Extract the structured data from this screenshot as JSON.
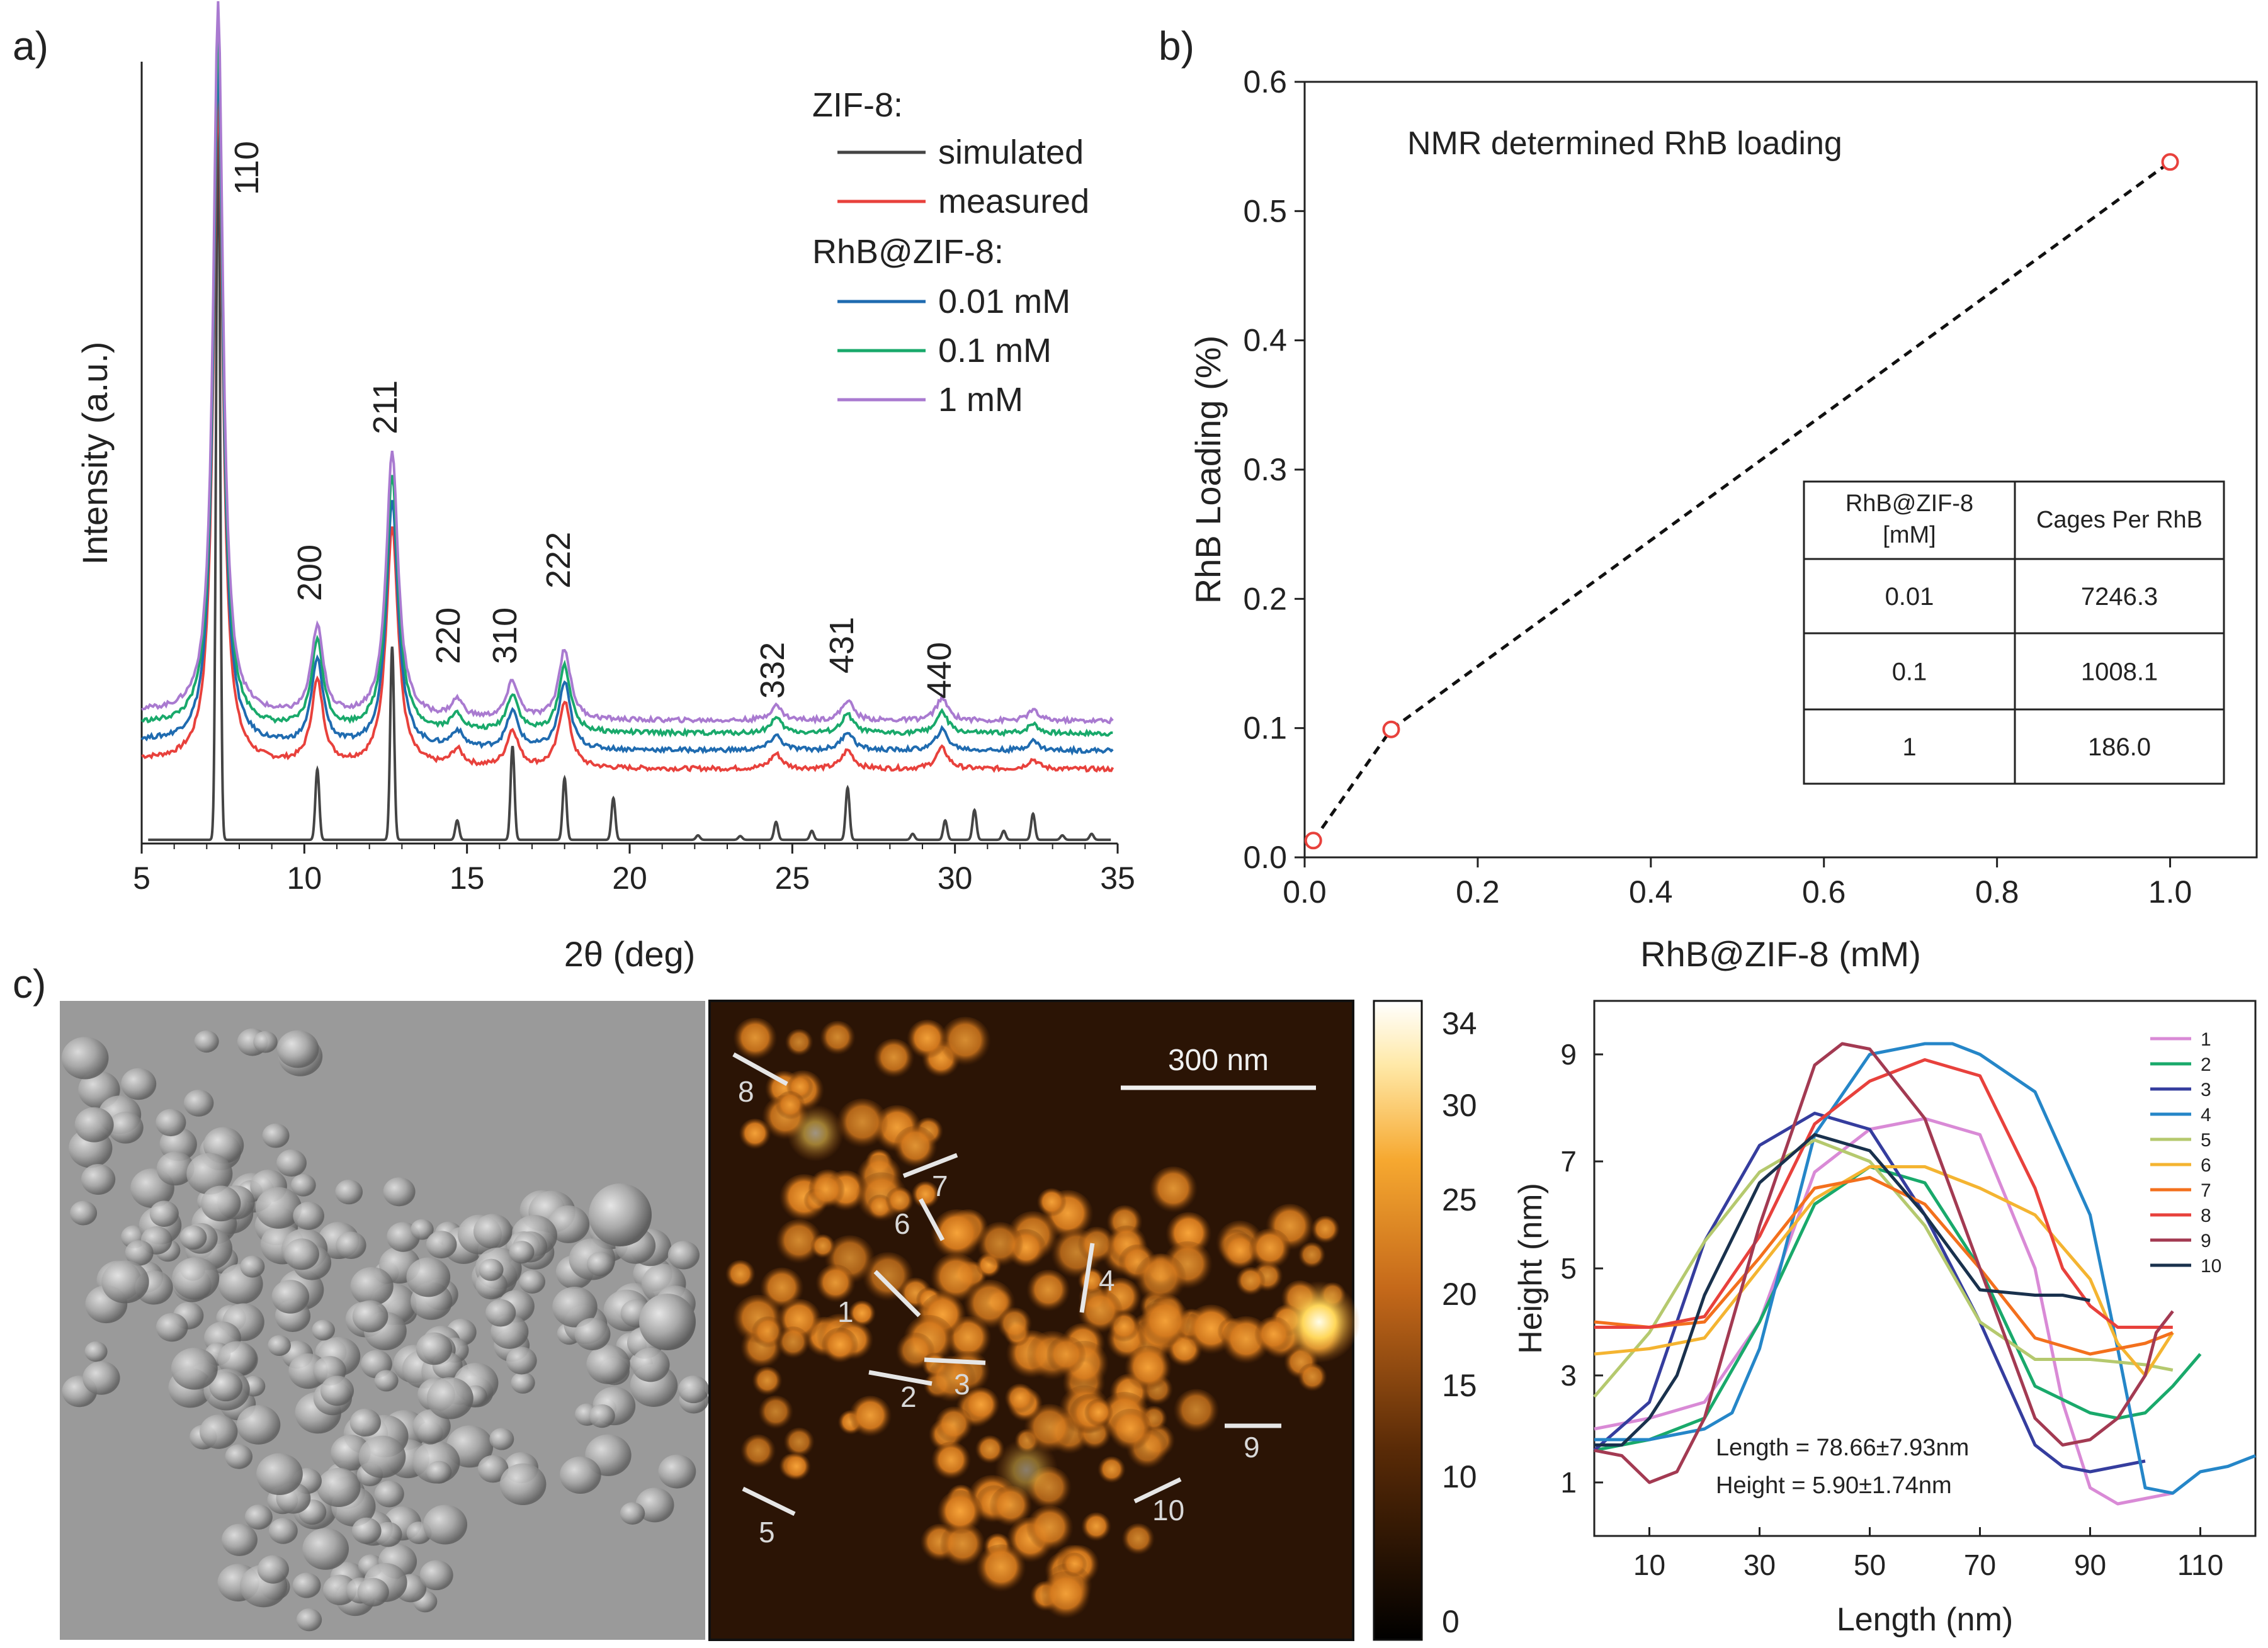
{
  "panels": {
    "a": "a)",
    "b": "b)",
    "c": "c)"
  },
  "colors": {
    "simulated": "#444444",
    "measured": "#e8413c",
    "c001": "#1f6bb0",
    "c01": "#19a96b",
    "c1": "#a97ad0"
  },
  "chart_data": [
    {
      "id": "xrd",
      "type": "line",
      "title": "",
      "xlabel": "2θ (deg)",
      "ylabel": "Intensity (a.u.)",
      "xlim": [
        5,
        35
      ],
      "xticks": [
        "5",
        "10",
        "15",
        "20",
        "25",
        "30",
        "35"
      ],
      "legend": {
        "group1": "ZIF-8:",
        "group2": "RhB@ZIF-8:",
        "entries": [
          {
            "name": "simulated",
            "color": "#444444"
          },
          {
            "name": "measured",
            "color": "#e8413c"
          },
          {
            "name": "0.01 mM",
            "color": "#1f6bb0"
          },
          {
            "name": "0.1 mM",
            "color": "#19a96b"
          },
          {
            "name": "1 mM",
            "color": "#a97ad0"
          }
        ]
      },
      "peaks": [
        {
          "hkl": "110",
          "x": 7.35
        },
        {
          "hkl": "200",
          "x": 10.4
        },
        {
          "hkl": "211",
          "x": 12.7
        },
        {
          "hkl": "220",
          "x": 14.7
        },
        {
          "hkl": "310",
          "x": 16.4
        },
        {
          "hkl": "222",
          "x": 18.0
        },
        {
          "hkl": "332",
          "x": 24.5
        },
        {
          "hkl": "431",
          "x": 26.7
        },
        {
          "hkl": "440",
          "x": 29.6
        }
      ],
      "simulated_sticks": [
        {
          "x": 7.35,
          "h": 1.0
        },
        {
          "x": 10.4,
          "h": 0.095
        },
        {
          "x": 12.7,
          "h": 0.26
        },
        {
          "x": 14.7,
          "h": 0.026
        },
        {
          "x": 16.4,
          "h": 0.126
        },
        {
          "x": 18.0,
          "h": 0.083
        },
        {
          "x": 19.5,
          "h": 0.056
        },
        {
          "x": 22.1,
          "h": 0.006
        },
        {
          "x": 23.4,
          "h": 0.005
        },
        {
          "x": 24.5,
          "h": 0.024
        },
        {
          "x": 25.6,
          "h": 0.012
        },
        {
          "x": 26.7,
          "h": 0.07
        },
        {
          "x": 28.7,
          "h": 0.008
        },
        {
          "x": 29.7,
          "h": 0.026
        },
        {
          "x": 30.6,
          "h": 0.04
        },
        {
          "x": 31.5,
          "h": 0.012
        },
        {
          "x": 32.4,
          "h": 0.035
        },
        {
          "x": 33.3,
          "h": 0.006
        },
        {
          "x": 34.2,
          "h": 0.008
        }
      ],
      "series": [
        {
          "name": "measured",
          "base": 0.1,
          "tilt": 0.0,
          "amps": [
            0.9,
            0.112,
            0.325,
            0.022,
            0.05,
            0.09,
            0.0,
            0.02,
            0.025,
            0.028,
            0.013
          ]
        },
        {
          "name": "0.01 mM",
          "base": 0.125,
          "tilt": 0.0,
          "amps": [
            0.92,
            0.115,
            0.335,
            0.022,
            0.05,
            0.09,
            0.0,
            0.02,
            0.025,
            0.028,
            0.013
          ]
        },
        {
          "name": "0.1 mM",
          "base": 0.148,
          "tilt": 0.0,
          "amps": [
            0.94,
            0.118,
            0.345,
            0.022,
            0.05,
            0.09,
            0.0,
            0.02,
            0.025,
            0.028,
            0.013
          ]
        },
        {
          "name": "1 mM",
          "base": 0.165,
          "tilt": 0.0,
          "amps": [
            0.96,
            0.12,
            0.36,
            0.024,
            0.05,
            0.095,
            0.0,
            0.02,
            0.027,
            0.03,
            0.014
          ]
        }
      ]
    },
    {
      "id": "loading",
      "type": "scatter",
      "title": "NMR determined RhB loading",
      "xlabel": "RhB@ZIF-8 (mM)",
      "ylabel": "RhB Loading (%)",
      "xlim": [
        0,
        1.1
      ],
      "ylim": [
        0,
        0.6
      ],
      "xticks": [
        "0.0",
        "0.2",
        "0.4",
        "0.6",
        "0.8",
        "1.0"
      ],
      "yticks": [
        "0.0",
        "0.1",
        "0.2",
        "0.3",
        "0.4",
        "0.5",
        "0.6"
      ],
      "x": [
        0.01,
        0.1,
        1.0
      ],
      "y": [
        0.013,
        0.099,
        0.538
      ],
      "table": {
        "headers": [
          "RhB@ZIF-8\n[mM]",
          "Cages Per RhB"
        ],
        "header_line1": "RhB@ZIF-8",
        "header_line2": "[mM]",
        "rows": [
          [
            "0.01",
            "7246.3"
          ],
          [
            "0.1",
            "1008.1"
          ],
          [
            "1",
            "186.0"
          ]
        ]
      }
    },
    {
      "id": "profiles",
      "type": "line",
      "title": "",
      "xlabel": "Length (nm)",
      "ylabel": "Height (nm)",
      "xlim": [
        0,
        120
      ],
      "ylim": [
        0,
        10
      ],
      "xticks": [
        "10",
        "30",
        "50",
        "70",
        "90",
        "110"
      ],
      "yticks": [
        "1",
        "3",
        "5",
        "7",
        "9"
      ],
      "annotations": [
        "Length = 78.66±7.93nm",
        "Height = 5.90±1.74nm"
      ],
      "series": [
        {
          "name": "1",
          "color": "#d98ad6",
          "x": [
            0,
            10,
            20,
            30,
            40,
            50,
            60,
            70,
            80,
            85,
            90,
            95,
            100,
            105
          ],
          "y": [
            2.0,
            2.2,
            2.5,
            4.0,
            6.8,
            7.6,
            7.8,
            7.5,
            5.0,
            2.5,
            0.9,
            0.6,
            0.7,
            0.8
          ]
        },
        {
          "name": "2",
          "color": "#19a96b",
          "x": [
            0,
            10,
            20,
            30,
            40,
            50,
            60,
            70,
            80,
            90,
            95,
            100,
            105,
            110
          ],
          "y": [
            1.6,
            1.8,
            2.2,
            4.0,
            6.2,
            6.9,
            6.6,
            5.0,
            2.8,
            2.3,
            2.2,
            2.3,
            2.8,
            3.4
          ]
        },
        {
          "name": "3",
          "color": "#353d9e",
          "x": [
            0,
            10,
            20,
            30,
            40,
            50,
            60,
            70,
            80,
            85,
            90,
            95,
            100
          ],
          "y": [
            1.6,
            2.5,
            5.5,
            7.3,
            7.9,
            7.6,
            6.0,
            4.0,
            1.7,
            1.3,
            1.2,
            1.3,
            1.4
          ]
        },
        {
          "name": "4",
          "color": "#2586c8",
          "x": [
            0,
            10,
            20,
            25,
            30,
            40,
            50,
            60,
            65,
            70,
            80,
            90,
            95,
            100,
            105,
            110,
            115,
            120
          ],
          "y": [
            1.8,
            1.8,
            2.0,
            2.3,
            3.5,
            7.5,
            9.0,
            9.2,
            9.2,
            9.0,
            8.3,
            6.0,
            3.5,
            0.9,
            0.8,
            1.2,
            1.3,
            1.5
          ]
        },
        {
          "name": "5",
          "color": "#b5c96e",
          "x": [
            0,
            10,
            20,
            30,
            40,
            50,
            60,
            70,
            80,
            90,
            100,
            105
          ],
          "y": [
            2.6,
            3.8,
            5.5,
            6.8,
            7.4,
            7.0,
            5.8,
            4.0,
            3.3,
            3.3,
            3.2,
            3.1
          ]
        },
        {
          "name": "6",
          "color": "#f4b431",
          "x": [
            0,
            10,
            20,
            30,
            40,
            50,
            60,
            70,
            80,
            90,
            95,
            100,
            105
          ],
          "y": [
            3.4,
            3.5,
            3.7,
            5.0,
            6.3,
            6.9,
            6.9,
            6.5,
            6.0,
            4.8,
            3.6,
            3.0,
            3.8
          ]
        },
        {
          "name": "7",
          "color": "#f3701d",
          "x": [
            0,
            10,
            20,
            30,
            40,
            50,
            60,
            70,
            80,
            90,
            95,
            100,
            105
          ],
          "y": [
            4.0,
            3.9,
            4.0,
            5.2,
            6.5,
            6.7,
            6.2,
            5.0,
            3.7,
            3.4,
            3.5,
            3.6,
            3.8
          ]
        },
        {
          "name": "8",
          "color": "#e8413c",
          "x": [
            0,
            10,
            20,
            30,
            40,
            50,
            60,
            70,
            80,
            85,
            90,
            95,
            100,
            105
          ],
          "y": [
            3.9,
            3.9,
            4.1,
            5.6,
            7.7,
            8.5,
            8.9,
            8.6,
            6.5,
            5.0,
            4.3,
            3.9,
            3.9,
            3.9
          ]
        },
        {
          "name": "9",
          "color": "#a33a52",
          "x": [
            0,
            5,
            10,
            15,
            20,
            30,
            40,
            45,
            50,
            60,
            70,
            80,
            85,
            90,
            95,
            100,
            102,
            105
          ],
          "y": [
            1.6,
            1.5,
            1.0,
            1.2,
            2.2,
            5.8,
            8.8,
            9.2,
            9.1,
            7.8,
            5.0,
            2.2,
            1.7,
            1.8,
            2.2,
            3.0,
            3.8,
            4.2
          ]
        },
        {
          "name": "10",
          "color": "#19314d",
          "x": [
            0,
            5,
            10,
            15,
            20,
            30,
            40,
            50,
            60,
            70,
            80,
            85,
            90
          ],
          "y": [
            1.7,
            1.7,
            2.2,
            3.0,
            4.5,
            6.6,
            7.5,
            7.2,
            6.0,
            4.6,
            4.5,
            4.5,
            4.4
          ]
        }
      ]
    }
  ],
  "afm": {
    "scalebar": "300 nm",
    "colorbar_ticks": [
      "34",
      "30",
      "25",
      "20",
      "15",
      "10",
      "0"
    ],
    "line_labels": [
      "1",
      "2",
      "3",
      "4",
      "5",
      "6",
      "7",
      "8",
      "9",
      "10"
    ]
  }
}
